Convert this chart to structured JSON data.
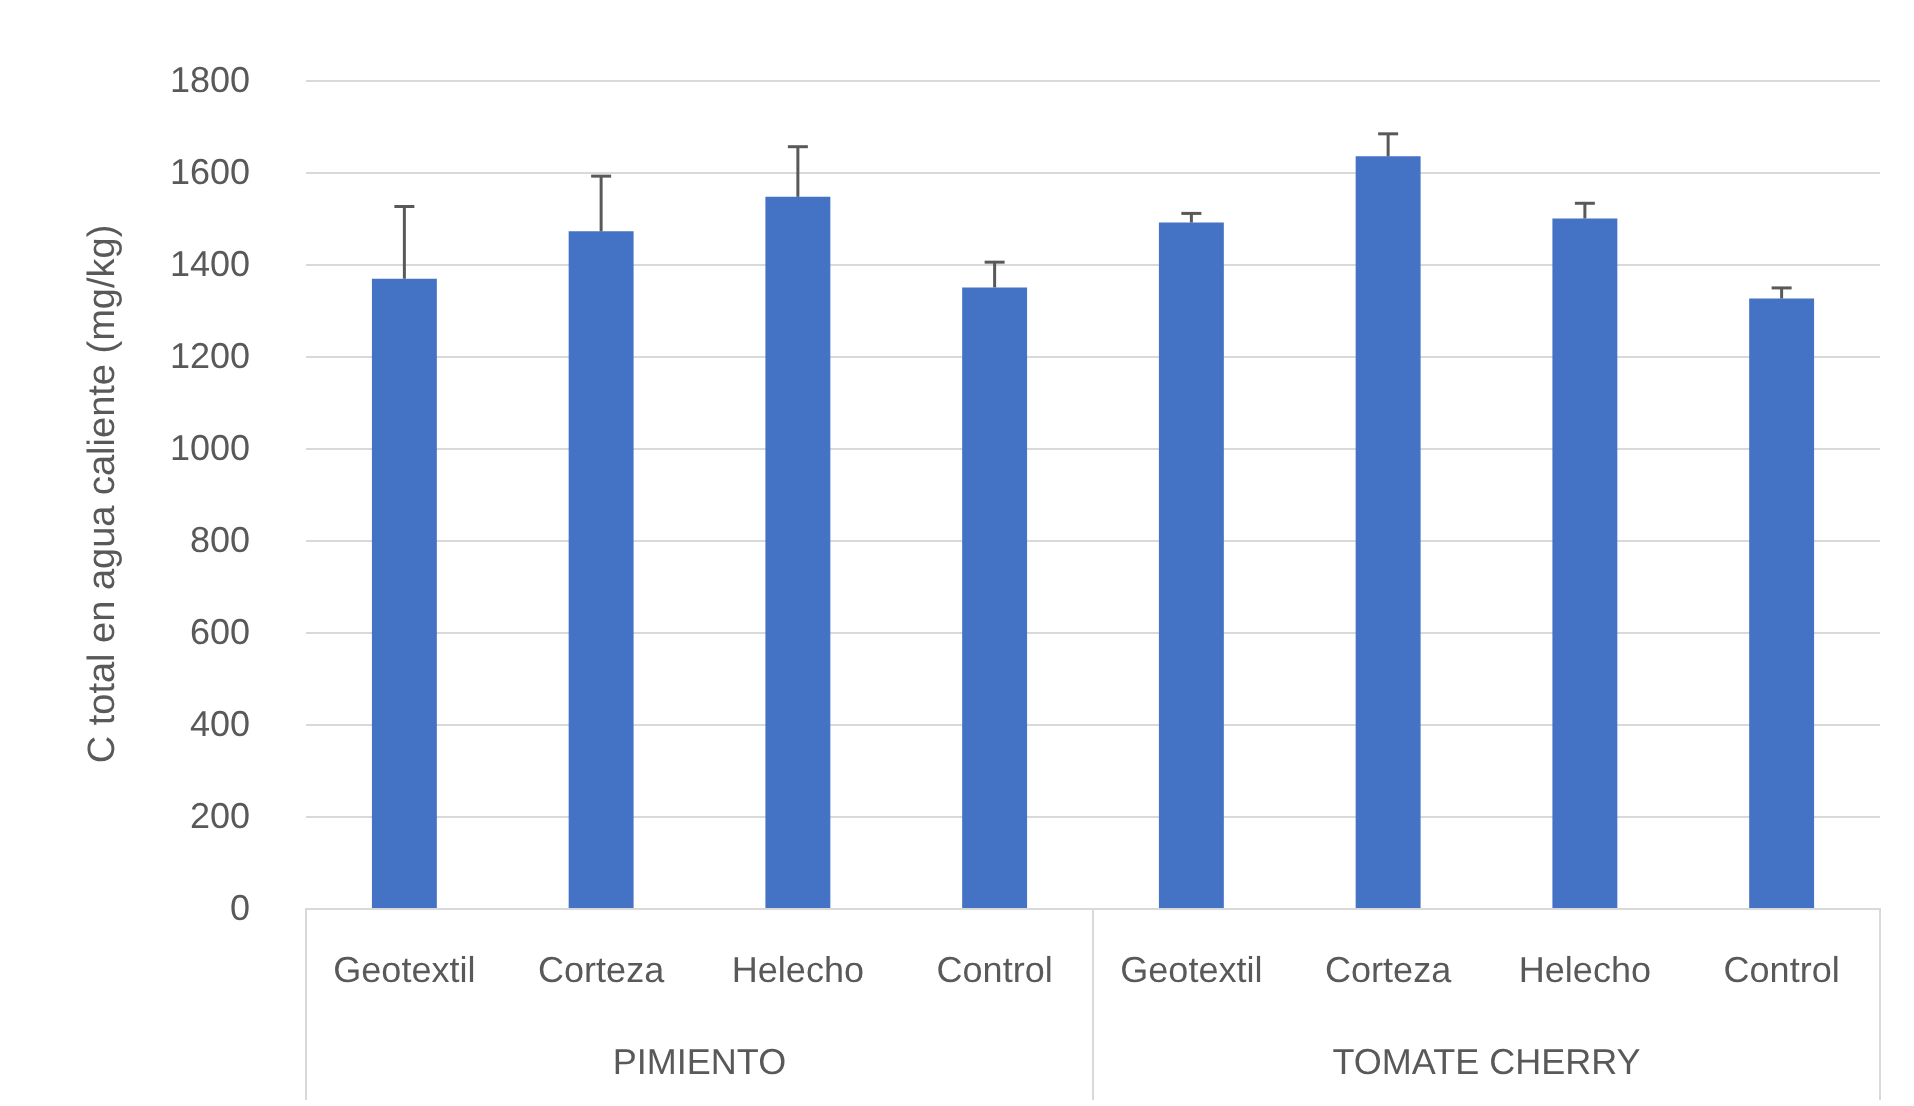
{
  "chart_data": {
    "type": "bar",
    "ylabel": "C total en agua caliente (mg/kg)",
    "categories": [
      "Geotextil",
      "Corteza",
      "Helecho",
      "Control",
      "Geotextil",
      "Corteza",
      "Helecho",
      "Control"
    ],
    "annotations": [
      "PIMIENTO",
      "TOMATE CHERRY"
    ],
    "series": [
      {
        "color": "#4472c4",
        "values": [
          1368,
          1471,
          1546,
          1349,
          1490,
          1634,
          1499,
          1325
        ],
        "errors": [
          [
            1368,
            1525
          ],
          [
            1471,
            1591
          ],
          [
            1546,
            1655
          ],
          [
            1349,
            1404
          ],
          [
            1490,
            1510
          ],
          [
            1634,
            1683
          ],
          [
            1499,
            1532
          ],
          [
            1325,
            1348
          ]
        ]
      }
    ],
    "ylim": [
      0,
      1800
    ],
    "yticks": [
      0,
      200,
      400,
      600,
      800,
      1000,
      1200,
      1400,
      1600,
      1800
    ],
    "grid": "y"
  }
}
